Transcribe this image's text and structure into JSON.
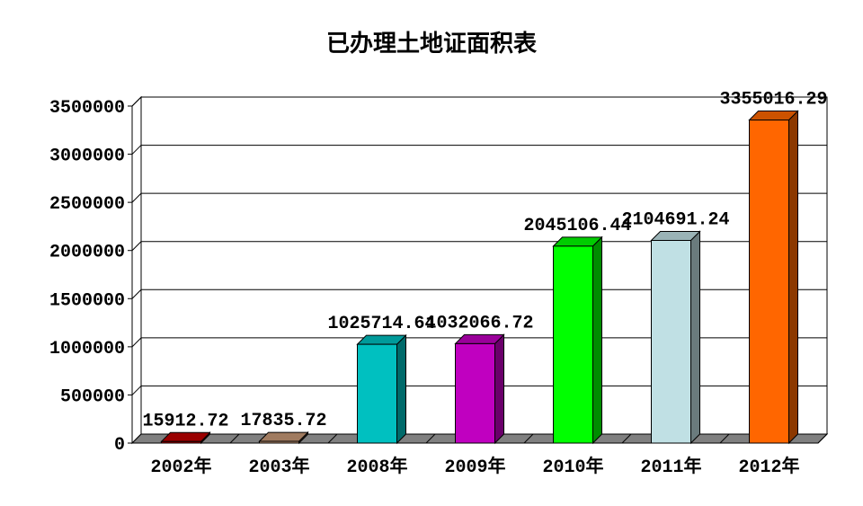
{
  "chart_data": {
    "type": "bar",
    "title": "已办理土地证面积表",
    "categories": [
      "2002年",
      "2003年",
      "2008年",
      "2009年",
      "2010年",
      "2011年",
      "2012年"
    ],
    "values": [
      15912.72,
      17835.72,
      1025714.64,
      1032066.72,
      2045106.44,
      2104691.24,
      3355016.29
    ],
    "data_labels": [
      "15912.72",
      "17835.72",
      "1025714.64",
      "1032066.72",
      "2045106.44",
      "2104691.24",
      "3355016.29"
    ],
    "colors": [
      "#c00000",
      "#c89a78",
      "#00c0c0",
      "#c000c0",
      "#00ff00",
      "#c0e0e4",
      "#ff6600"
    ],
    "ylim": [
      0,
      3500000
    ],
    "yticks": [
      "0",
      "500000",
      "1000000",
      "1500000",
      "2000000",
      "2500000",
      "3000000",
      "3500000"
    ],
    "grid": true,
    "style": "3d",
    "legend": "none",
    "xlabel": "",
    "ylabel": ""
  }
}
